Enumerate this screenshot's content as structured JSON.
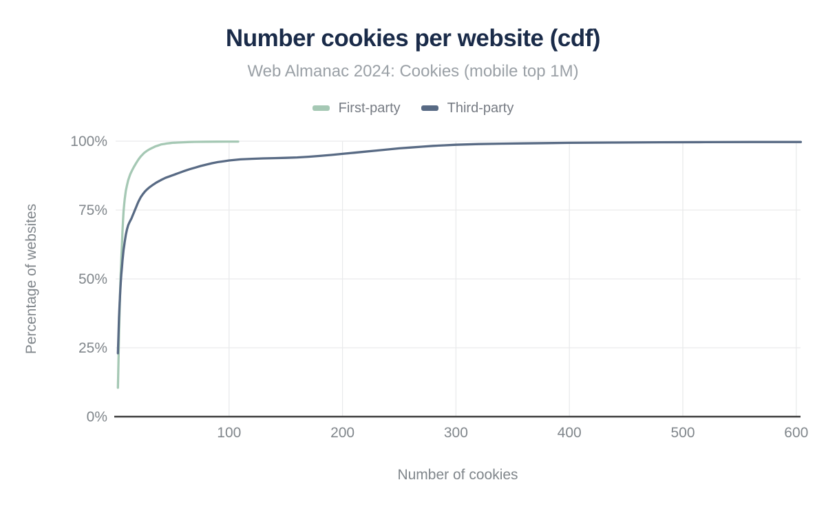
{
  "title": "Number cookies per website (cdf)",
  "subtitle": "Web Almanac 2024: Cookies (mobile top 1M)",
  "colors": {
    "background": "#ffffff",
    "title": "#1a2b49",
    "subtitle": "#9aa0a6",
    "legend_text": "#757a82",
    "tick_label": "#80868b",
    "axis_title": "#80868b",
    "axis_line": "#3b3b3b",
    "grid": "#e9eaec",
    "first_party": "#a5c8b4",
    "third_party": "#586a84"
  },
  "chart_data": {
    "type": "line",
    "title": "Number cookies per website (cdf)",
    "subtitle": "Web Almanac 2024: Cookies (mobile top 1M)",
    "xlabel": "Number of cookies",
    "ylabel": "Percentage of websites",
    "xlim": [
      0,
      604
    ],
    "ylim": [
      0,
      100
    ],
    "x_ticks": [
      100,
      200,
      300,
      400,
      500,
      600
    ],
    "y_ticks": [
      0,
      25,
      50,
      75,
      100
    ],
    "y_tick_suffix": "%",
    "grid": true,
    "legend_position": "top",
    "series": [
      {
        "name": "First-party",
        "color": "#a5c8b4",
        "points": [
          [
            2,
            10.5
          ],
          [
            2.3,
            16
          ],
          [
            2.6,
            22
          ],
          [
            3,
            30
          ],
          [
            3.5,
            39
          ],
          [
            4,
            46
          ],
          [
            4.5,
            52
          ],
          [
            5,
            57
          ],
          [
            5.5,
            62
          ],
          [
            6,
            67
          ],
          [
            6.5,
            71
          ],
          [
            7,
            74.5
          ],
          [
            7.5,
            77
          ],
          [
            8,
            79
          ],
          [
            9,
            82
          ],
          [
            10,
            84
          ],
          [
            11,
            85.7
          ],
          [
            12,
            87
          ],
          [
            13,
            88.1
          ],
          [
            14,
            89
          ],
          [
            15,
            89.8
          ],
          [
            16,
            90.6
          ],
          [
            18,
            92
          ],
          [
            20,
            93.3
          ],
          [
            22,
            94.4
          ],
          [
            25,
            95.7
          ],
          [
            28,
            96.6
          ],
          [
            30,
            97.1
          ],
          [
            32,
            97.5
          ],
          [
            35,
            98.1
          ],
          [
            38,
            98.5
          ],
          [
            40,
            98.8
          ],
          [
            43,
            99.0
          ],
          [
            45,
            99.15
          ],
          [
            48,
            99.3
          ],
          [
            50,
            99.4
          ],
          [
            55,
            99.5
          ],
          [
            60,
            99.6
          ],
          [
            65,
            99.7
          ],
          [
            70,
            99.75
          ],
          [
            80,
            99.8
          ],
          [
            90,
            99.82
          ],
          [
            100,
            99.85
          ],
          [
            108,
            99.85
          ]
        ]
      },
      {
        "name": "Third-party",
        "color": "#586a84",
        "points": [
          [
            2,
            23
          ],
          [
            2.3,
            27
          ],
          [
            2.6,
            31
          ],
          [
            3,
            36
          ],
          [
            3.5,
            41
          ],
          [
            4,
            45
          ],
          [
            4.5,
            48.5
          ],
          [
            5,
            51.5
          ],
          [
            5.5,
            54
          ],
          [
            6,
            56.5
          ],
          [
            6.5,
            58.5
          ],
          [
            7,
            60.5
          ],
          [
            7.5,
            62
          ],
          [
            8,
            63.5
          ],
          [
            9,
            66
          ],
          [
            10,
            68
          ],
          [
            11,
            69.4
          ],
          [
            12,
            70.4
          ],
          [
            13,
            71.2
          ],
          [
            14,
            72
          ],
          [
            15,
            73
          ],
          [
            16,
            74
          ],
          [
            17,
            75
          ],
          [
            18,
            76
          ],
          [
            19,
            77
          ],
          [
            20,
            78
          ],
          [
            22,
            79.6
          ],
          [
            24,
            80.8
          ],
          [
            26,
            81.8
          ],
          [
            28,
            82.6
          ],
          [
            30,
            83.3
          ],
          [
            33,
            84.2
          ],
          [
            36,
            85
          ],
          [
            40,
            85.9
          ],
          [
            44,
            86.7
          ],
          [
            48,
            87.3
          ],
          [
            52,
            87.9
          ],
          [
            56,
            88.5
          ],
          [
            60,
            89.1
          ],
          [
            65,
            89.8
          ],
          [
            70,
            90.4
          ],
          [
            75,
            91
          ],
          [
            80,
            91.5
          ],
          [
            85,
            92
          ],
          [
            90,
            92.4
          ],
          [
            95,
            92.7
          ],
          [
            100,
            93
          ],
          [
            110,
            93.4
          ],
          [
            120,
            93.6
          ],
          [
            130,
            93.75
          ],
          [
            140,
            93.85
          ],
          [
            150,
            93.95
          ],
          [
            160,
            94.1
          ],
          [
            170,
            94.35
          ],
          [
            180,
            94.65
          ],
          [
            190,
            95
          ],
          [
            200,
            95.4
          ],
          [
            210,
            95.8
          ],
          [
            220,
            96.2
          ],
          [
            230,
            96.6
          ],
          [
            240,
            97
          ],
          [
            250,
            97.4
          ],
          [
            260,
            97.7
          ],
          [
            270,
            98
          ],
          [
            280,
            98.3
          ],
          [
            290,
            98.5
          ],
          [
            300,
            98.7
          ],
          [
            320,
            98.95
          ],
          [
            340,
            99.1
          ],
          [
            360,
            99.2
          ],
          [
            380,
            99.3
          ],
          [
            400,
            99.4
          ],
          [
            440,
            99.5
          ],
          [
            480,
            99.6
          ],
          [
            520,
            99.65
          ],
          [
            560,
            99.7
          ],
          [
            604,
            99.7
          ]
        ]
      }
    ]
  }
}
